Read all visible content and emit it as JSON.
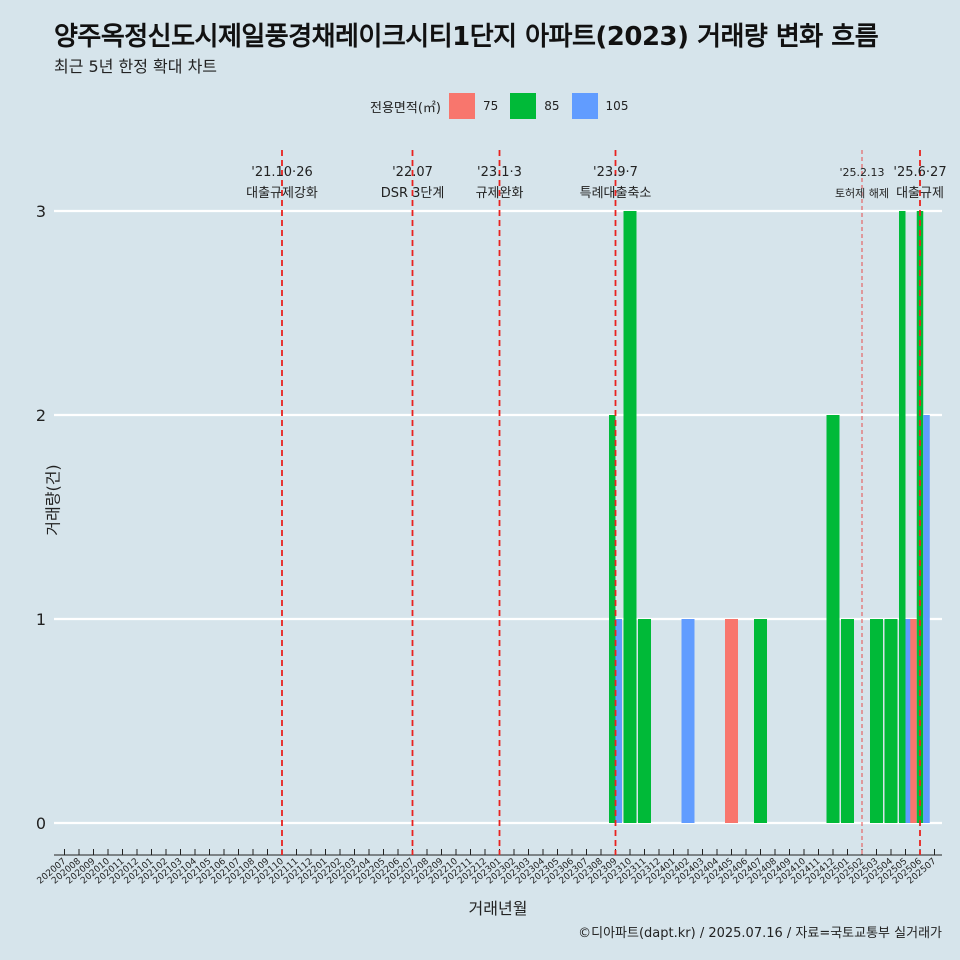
{
  "title": "양주옥정신도시제일풍경채레이크시티1단지 아파트(2023) 거래량 변화 흐름",
  "subtitle": "최근 5년 한정 확대 차트",
  "caption": "©디아파트(dapt.kr) / 2025.07.16 / 자료=국토교통부 실거래가",
  "legend": {
    "title": "전용면적(㎡)",
    "items": [
      {
        "label": "75",
        "color": "#f8766d"
      },
      {
        "label": "85",
        "color": "#00ba38"
      },
      {
        "label": "105",
        "color": "#619cff"
      }
    ]
  },
  "chart_data": {
    "type": "bar",
    "xlabel": "거래년월",
    "ylabel": "거래량(건)",
    "ylim": [
      0,
      3
    ],
    "yticks": [
      0,
      1,
      2,
      3
    ],
    "grid": "horizontal",
    "categories": [
      "202007",
      "202008",
      "202009",
      "202010",
      "202011",
      "202012",
      "202101",
      "202102",
      "202103",
      "202104",
      "202105",
      "202106",
      "202107",
      "202108",
      "202109",
      "202110",
      "202111",
      "202112",
      "202201",
      "202202",
      "202203",
      "202204",
      "202205",
      "202206",
      "202207",
      "202208",
      "202209",
      "202210",
      "202211",
      "202212",
      "202301",
      "202302",
      "202303",
      "202304",
      "202305",
      "202306",
      "202307",
      "202308",
      "202309",
      "202310",
      "202311",
      "202312",
      "202401",
      "202402",
      "202403",
      "202404",
      "202405",
      "202406",
      "202407",
      "202408",
      "202409",
      "202410",
      "202411",
      "202412",
      "202501",
      "202502",
      "202503",
      "202504",
      "202505",
      "202506",
      "202507"
    ],
    "series": [
      {
        "name": "75",
        "color": "#f8766d",
        "values": [
          0,
          0,
          0,
          0,
          0,
          0,
          0,
          0,
          0,
          0,
          0,
          0,
          0,
          0,
          0,
          0,
          0,
          0,
          0,
          0,
          0,
          0,
          0,
          0,
          0,
          0,
          0,
          0,
          0,
          0,
          0,
          0,
          0,
          0,
          0,
          0,
          0,
          0,
          0,
          0,
          0,
          0,
          0,
          0,
          0,
          0,
          1,
          0,
          0,
          0,
          0,
          0,
          0,
          0,
          0,
          0,
          0,
          0,
          0,
          1,
          0
        ]
      },
      {
        "name": "85",
        "color": "#00ba38",
        "values": [
          0,
          0,
          0,
          0,
          0,
          0,
          0,
          0,
          0,
          0,
          0,
          0,
          0,
          0,
          0,
          0,
          0,
          0,
          0,
          0,
          0,
          0,
          0,
          0,
          0,
          0,
          0,
          0,
          0,
          0,
          0,
          0,
          0,
          0,
          0,
          0,
          0,
          0,
          2,
          3,
          1,
          0,
          0,
          0,
          0,
          0,
          0,
          0,
          1,
          0,
          0,
          0,
          0,
          2,
          1,
          0,
          1,
          1,
          3,
          3,
          0
        ]
      },
      {
        "name": "105",
        "color": "#619cff",
        "values": [
          0,
          0,
          0,
          0,
          0,
          0,
          0,
          0,
          0,
          0,
          0,
          0,
          0,
          0,
          0,
          0,
          0,
          0,
          0,
          0,
          0,
          0,
          0,
          0,
          0,
          0,
          0,
          0,
          0,
          0,
          0,
          0,
          0,
          0,
          0,
          0,
          0,
          0,
          1,
          0,
          0,
          0,
          0,
          1,
          0,
          0,
          0,
          0,
          0,
          0,
          0,
          0,
          0,
          0,
          0,
          0,
          0,
          0,
          1,
          2,
          0
        ]
      }
    ],
    "annotations": [
      {
        "category": "202110",
        "date": "'21.10·26",
        "label": "대출규제강화",
        "style": "dashed"
      },
      {
        "category": "202207",
        "date": "'22.07",
        "label": "DSR 3단계",
        "style": "dashed"
      },
      {
        "category": "202301",
        "date": "'23.1·3",
        "label": "규제완화",
        "style": "dashed"
      },
      {
        "category": "202309",
        "date": "'23.9·7",
        "label": "특례대출축소",
        "style": "dashed"
      },
      {
        "category": "202502",
        "date": "'25.2.13",
        "label": "토허제 해제",
        "style": "thin-dashed"
      },
      {
        "category": "202506",
        "date": "'25.6·27",
        "label": "대출규제",
        "style": "dashed"
      }
    ]
  }
}
